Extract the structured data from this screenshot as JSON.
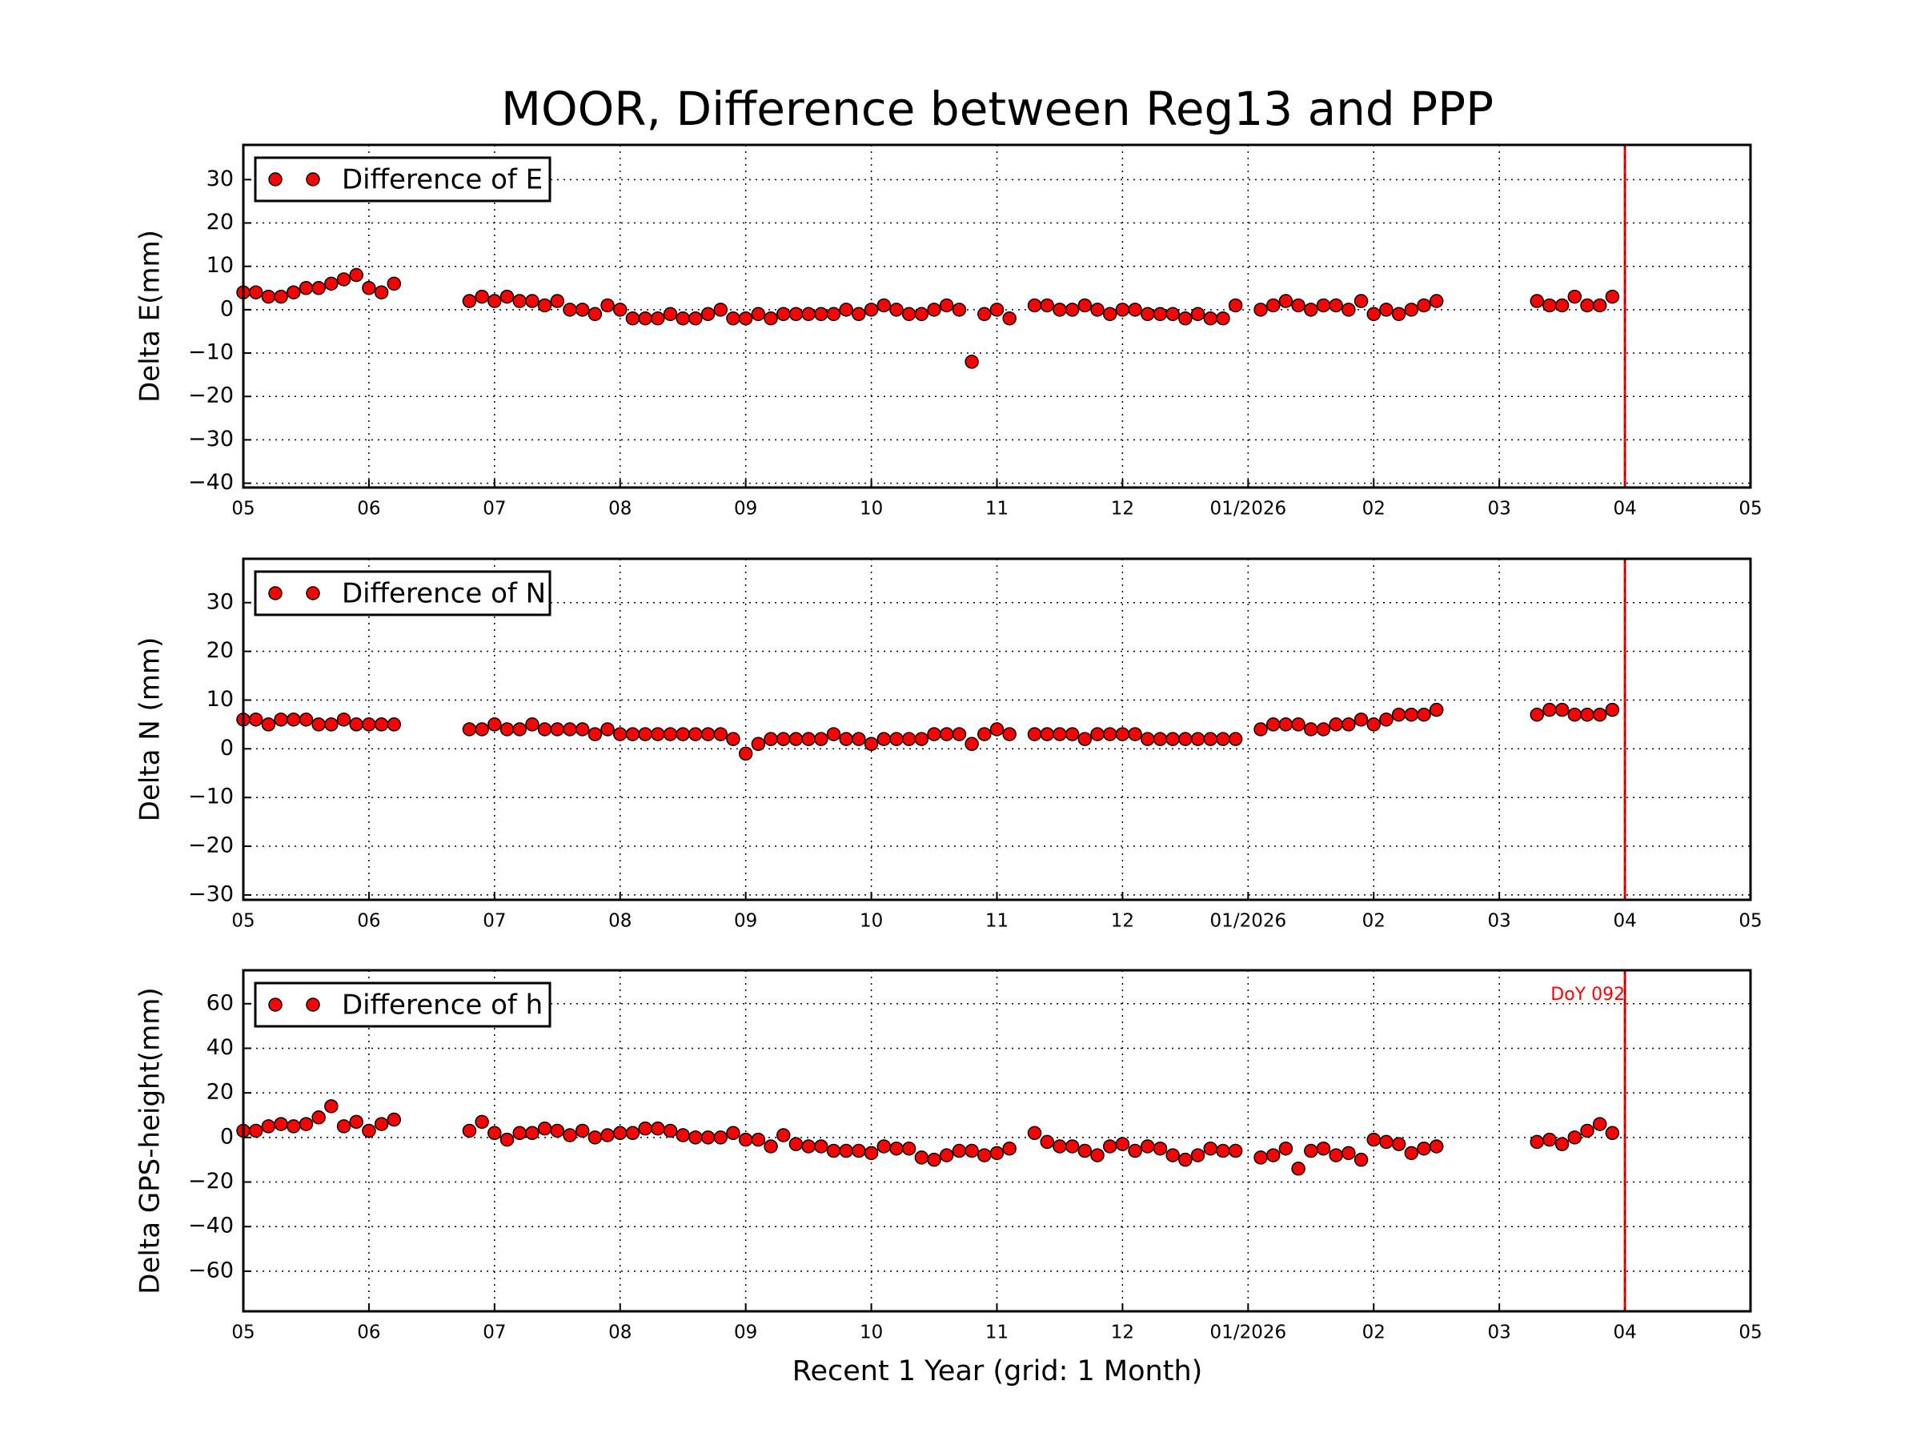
{
  "chart_data": [
    {
      "type": "scatter",
      "title": "MOOR, Difference between Reg13 and PPP",
      "ylabel": "Delta E(mm)",
      "grid": true,
      "legend": "upper left",
      "x": [
        0,
        0.1,
        0.2,
        0.3,
        0.4,
        0.5,
        0.6,
        0.7,
        0.8,
        0.9,
        1,
        1.1,
        1.2,
        1.8,
        1.9,
        2,
        2.1,
        2.2,
        2.3,
        2.4,
        2.5,
        2.6,
        2.7,
        2.8,
        2.9,
        3,
        3.1,
        3.2,
        3.3,
        3.4,
        3.5,
        3.6,
        3.7,
        3.8,
        3.9,
        4,
        4.1,
        4.2,
        4.3,
        4.4,
        4.5,
        4.6,
        4.7,
        4.8,
        4.9,
        5,
        5.1,
        5.2,
        5.3,
        5.4,
        5.5,
        5.6,
        5.7,
        5.8,
        5.9,
        6,
        6.1,
        6.3,
        6.4,
        6.5,
        6.6,
        6.7,
        6.8,
        6.9,
        7,
        7.1,
        7.2,
        7.3,
        7.4,
        7.5,
        7.6,
        7.7,
        7.8,
        7.9,
        8.1,
        8.2,
        8.3,
        8.4,
        8.5,
        8.6,
        8.7,
        8.8,
        8.9,
        9,
        9.1,
        9.2,
        9.3,
        9.4,
        9.5,
        10.3,
        10.4,
        10.5,
        10.6,
        10.7,
        10.8,
        10.9
      ],
      "series": [
        {
          "name": "Difference of E",
          "color": "#ff0000",
          "values": [
            4,
            4,
            3,
            3,
            4,
            5,
            5,
            6,
            7,
            8,
            5,
            4,
            6,
            2,
            3,
            2,
            3,
            2,
            2,
            1,
            2,
            0,
            0,
            -1,
            1,
            0,
            -2,
            -2,
            -2,
            -1,
            -2,
            -2,
            -1,
            0,
            -2,
            -2,
            -1,
            -2,
            -1,
            -1,
            -1,
            -1,
            -1,
            0,
            -1,
            0,
            1,
            0,
            -1,
            -1,
            0,
            1,
            0,
            -12,
            -1,
            0,
            -2,
            1,
            1,
            0,
            0,
            1,
            0,
            -1,
            0,
            0,
            -1,
            -1,
            -1,
            -2,
            -1,
            -2,
            -2,
            1,
            0,
            1,
            2,
            1,
            0,
            1,
            1,
            0,
            2,
            -1,
            0,
            -1,
            0,
            1,
            2,
            2,
            1,
            1,
            3,
            1,
            1,
            3
          ]
        }
      ],
      "xlim": [
        0,
        12
      ],
      "xticks": [
        {
          "value": 0,
          "label": "05"
        },
        {
          "value": 1,
          "label": "06"
        },
        {
          "value": 2,
          "label": "07"
        },
        {
          "value": 3,
          "label": "08"
        },
        {
          "value": 4,
          "label": "09"
        },
        {
          "value": 5,
          "label": "10"
        },
        {
          "value": 6,
          "label": "11"
        },
        {
          "value": 7,
          "label": "12"
        },
        {
          "value": 8,
          "label": "01/2026"
        },
        {
          "value": 9,
          "label": "02"
        },
        {
          "value": 10,
          "label": "03"
        },
        {
          "value": 11,
          "label": "04"
        },
        {
          "value": 12,
          "label": "05"
        }
      ],
      "ylim": [
        -41,
        38
      ],
      "yticks": [
        {
          "value": -40,
          "label": "−40"
        },
        {
          "value": -30,
          "label": "−30"
        },
        {
          "value": -20,
          "label": "−20"
        },
        {
          "value": -10,
          "label": "−10"
        },
        0,
        10,
        20,
        30
      ],
      "vline_x": 11,
      "vline_color": "#ff0000"
    },
    {
      "type": "scatter",
      "ylabel": "Delta N (mm)",
      "grid": true,
      "legend": "upper left",
      "x": [
        0,
        0.1,
        0.2,
        0.3,
        0.4,
        0.5,
        0.6,
        0.7,
        0.8,
        0.9,
        1,
        1.1,
        1.2,
        1.8,
        1.9,
        2,
        2.1,
        2.2,
        2.3,
        2.4,
        2.5,
        2.6,
        2.7,
        2.8,
        2.9,
        3,
        3.1,
        3.2,
        3.3,
        3.4,
        3.5,
        3.6,
        3.7,
        3.8,
        3.9,
        4,
        4.1,
        4.2,
        4.3,
        4.4,
        4.5,
        4.6,
        4.7,
        4.8,
        4.9,
        5,
        5.1,
        5.2,
        5.3,
        5.4,
        5.5,
        5.6,
        5.7,
        5.8,
        5.9,
        6,
        6.1,
        6.3,
        6.4,
        6.5,
        6.6,
        6.7,
        6.8,
        6.9,
        7,
        7.1,
        7.2,
        7.3,
        7.4,
        7.5,
        7.6,
        7.7,
        7.8,
        7.9,
        8.1,
        8.2,
        8.3,
        8.4,
        8.5,
        8.6,
        8.7,
        8.8,
        8.9,
        9,
        9.1,
        9.2,
        9.3,
        9.4,
        9.5,
        10.3,
        10.4,
        10.5,
        10.6,
        10.7,
        10.8,
        10.9
      ],
      "series": [
        {
          "name": "Difference of N",
          "color": "#ff0000",
          "values": [
            6,
            6,
            5,
            6,
            6,
            6,
            5,
            5,
            6,
            5,
            5,
            5,
            5,
            4,
            4,
            5,
            4,
            4,
            5,
            4,
            4,
            4,
            4,
            3,
            4,
            3,
            3,
            3,
            3,
            3,
            3,
            3,
            3,
            3,
            2,
            -1,
            1,
            2,
            2,
            2,
            2,
            2,
            3,
            2,
            2,
            1,
            2,
            2,
            2,
            2,
            3,
            3,
            3,
            1,
            3,
            4,
            3,
            3,
            3,
            3,
            3,
            2,
            3,
            3,
            3,
            3,
            2,
            2,
            2,
            2,
            2,
            2,
            2,
            2,
            4,
            5,
            5,
            5,
            4,
            4,
            5,
            5,
            6,
            5,
            6,
            7,
            7,
            7,
            8,
            7,
            8,
            8,
            7,
            7,
            7,
            8
          ]
        }
      ],
      "xlim": [
        0,
        12
      ],
      "xticks": [
        {
          "value": 0,
          "label": "05"
        },
        {
          "value": 1,
          "label": "06"
        },
        {
          "value": 2,
          "label": "07"
        },
        {
          "value": 3,
          "label": "08"
        },
        {
          "value": 4,
          "label": "09"
        },
        {
          "value": 5,
          "label": "10"
        },
        {
          "value": 6,
          "label": "11"
        },
        {
          "value": 7,
          "label": "12"
        },
        {
          "value": 8,
          "label": "01/2026"
        },
        {
          "value": 9,
          "label": "02"
        },
        {
          "value": 10,
          "label": "03"
        },
        {
          "value": 11,
          "label": "04"
        },
        {
          "value": 12,
          "label": "05"
        }
      ],
      "ylim": [
        -31,
        39
      ],
      "yticks": [
        {
          "value": -30,
          "label": "−30"
        },
        {
          "value": -20,
          "label": "−20"
        },
        {
          "value": -10,
          "label": "−10"
        },
        0,
        10,
        20,
        30
      ],
      "vline_x": 11,
      "vline_color": "#ff0000"
    },
    {
      "type": "scatter",
      "ylabel": "Delta GPS-height(mm)",
      "xlabel": "Recent 1 Year (grid: 1 Month)",
      "grid": true,
      "legend": "upper left",
      "annotation": "DoY 092",
      "x": [
        0,
        0.1,
        0.2,
        0.3,
        0.4,
        0.5,
        0.6,
        0.7,
        0.8,
        0.9,
        1,
        1.1,
        1.2,
        1.8,
        1.9,
        2,
        2.1,
        2.2,
        2.3,
        2.4,
        2.5,
        2.6,
        2.7,
        2.8,
        2.9,
        3,
        3.1,
        3.2,
        3.3,
        3.4,
        3.5,
        3.6,
        3.7,
        3.8,
        3.9,
        4,
        4.1,
        4.2,
        4.3,
        4.4,
        4.5,
        4.6,
        4.7,
        4.8,
        4.9,
        5,
        5.1,
        5.2,
        5.3,
        5.4,
        5.5,
        5.6,
        5.7,
        5.8,
        5.9,
        6,
        6.1,
        6.3,
        6.4,
        6.5,
        6.6,
        6.7,
        6.8,
        6.9,
        7,
        7.1,
        7.2,
        7.3,
        7.4,
        7.5,
        7.6,
        7.7,
        7.8,
        7.9,
        8.1,
        8.2,
        8.3,
        8.4,
        8.5,
        8.6,
        8.7,
        8.8,
        8.9,
        9,
        9.1,
        9.2,
        9.3,
        9.4,
        9.5,
        10.3,
        10.4,
        10.5,
        10.6,
        10.7,
        10.8,
        10.9
      ],
      "series": [
        {
          "name": "Difference of h",
          "color": "#ff0000",
          "values": [
            3,
            3,
            5,
            6,
            5,
            6,
            9,
            14,
            5,
            7,
            3,
            6,
            8,
            3,
            7,
            2,
            -1,
            2,
            2,
            4,
            3,
            1,
            3,
            0,
            1,
            2,
            2,
            4,
            4,
            3,
            1,
            0,
            0,
            0,
            2,
            -1,
            -1,
            -4,
            1,
            -3,
            -4,
            -4,
            -6,
            -6,
            -6,
            -7,
            -4,
            -5,
            -5,
            -9,
            -10,
            -8,
            -6,
            -6,
            -8,
            -7,
            -5,
            2,
            -2,
            -4,
            -4,
            -6,
            -8,
            -4,
            -3,
            -6,
            -4,
            -5,
            -8,
            -10,
            -8,
            -5,
            -6,
            -6,
            -9,
            -8,
            -5,
            -14,
            -6,
            -5,
            -8,
            -7,
            -10,
            -1,
            -2,
            -3,
            -7,
            -5,
            -4,
            -2,
            -1,
            -3,
            0,
            3,
            6,
            2
          ]
        }
      ],
      "xlim": [
        0,
        12
      ],
      "xticks": [
        {
          "value": 0,
          "label": "05"
        },
        {
          "value": 1,
          "label": "06"
        },
        {
          "value": 2,
          "label": "07"
        },
        {
          "value": 3,
          "label": "08"
        },
        {
          "value": 4,
          "label": "09"
        },
        {
          "value": 5,
          "label": "10"
        },
        {
          "value": 6,
          "label": "11"
        },
        {
          "value": 7,
          "label": "12"
        },
        {
          "value": 8,
          "label": "01/2026"
        },
        {
          "value": 9,
          "label": "02"
        },
        {
          "value": 10,
          "label": "03"
        },
        {
          "value": 11,
          "label": "04"
        },
        {
          "value": 12,
          "label": "05"
        }
      ],
      "ylim": [
        -78,
        75
      ],
      "yticks": [
        {
          "value": -60,
          "label": "−60"
        },
        {
          "value": -40,
          "label": "−40"
        },
        {
          "value": -20,
          "label": "−20"
        },
        0,
        20,
        40,
        60
      ],
      "vline_x": 11,
      "vline_color": "#ff0000"
    }
  ]
}
